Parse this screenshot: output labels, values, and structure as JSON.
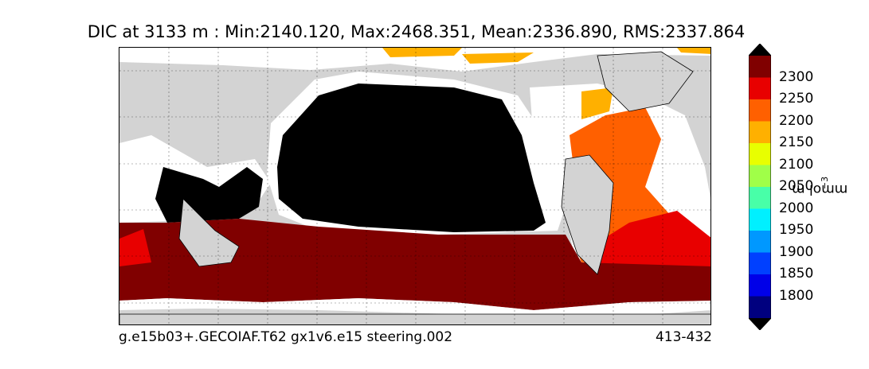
{
  "title": "DIC at 3133 m : Min:2140.120, Max:2468.351, Mean:2336.890, RMS:2337.864",
  "footer": {
    "left": "g.e15b03+.GECOIAF.T62 gx1v6.e15 steering.002",
    "right": "413-432"
  },
  "colorbar": {
    "units": "mmol m",
    "units_exponent": "−3",
    "ticks": [
      "2300",
      "2250",
      "2200",
      "2150",
      "2100",
      "2050",
      "2000",
      "1950",
      "1900",
      "1850",
      "1800"
    ],
    "over_color": "#000000",
    "under_color": "#000000",
    "colors_top_to_bottom": [
      "#800000",
      "#e80000",
      "#ff6000",
      "#ffb000",
      "#e8ff00",
      "#a0ff48",
      "#48ffa8",
      "#00f0ff",
      "#0098ff",
      "#0040ff",
      "#0000e8",
      "#00007f"
    ]
  },
  "map": {
    "land_color": "#d3d3d3",
    "missing_color": "#ffffff",
    "grid": true
  }
}
